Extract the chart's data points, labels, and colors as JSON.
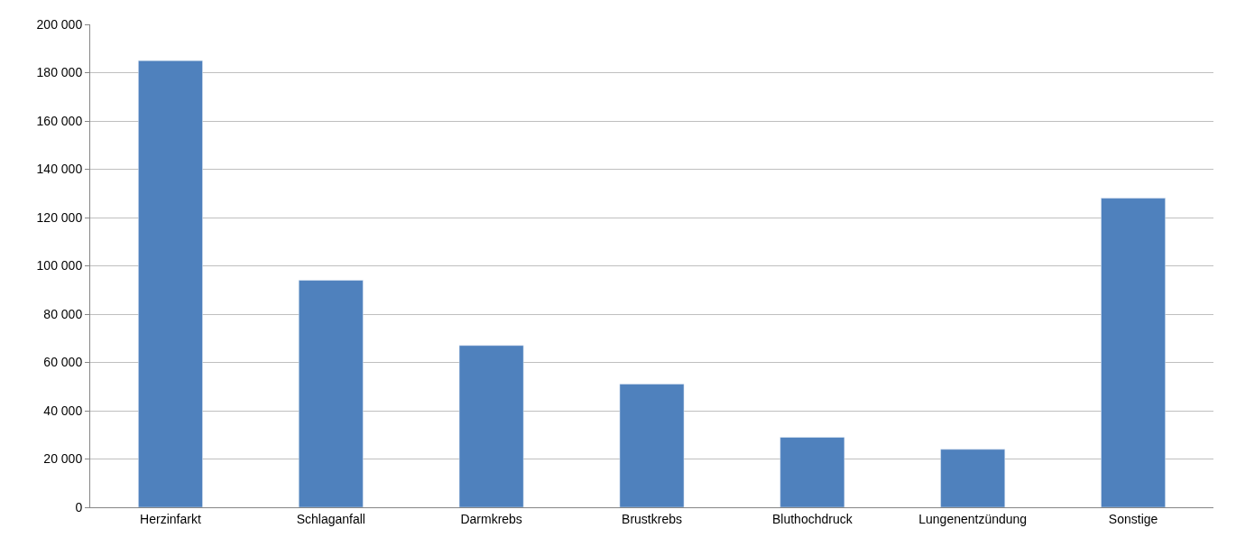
{
  "chart_data": {
    "type": "bar",
    "categories": [
      "Herzinfarkt",
      "Schlaganfall",
      "Darmkrebs",
      "Brustkrebs",
      "Bluthochdruck",
      "Lungenentzündung",
      "Sonstige"
    ],
    "series": [
      {
        "color": "#4f81bd",
        "values": [
          185000,
          94000,
          67000,
          51000,
          29000,
          24000,
          128000
        ]
      }
    ],
    "ylim": [
      0,
      200000
    ],
    "yticks": [
      0,
      {
        "value": 20000,
        "label": "20 000"
      },
      {
        "value": 40000,
        "label": "40 000"
      },
      {
        "value": 60000,
        "label": "60 000"
      },
      {
        "value": 80000,
        "label": "80 000"
      },
      {
        "value": 100000,
        "label": "100 000"
      },
      {
        "value": 120000,
        "label": "120 000"
      },
      {
        "value": 140000,
        "label": "140 000"
      },
      {
        "value": 160000,
        "label": "160 000"
      },
      {
        "value": 180000,
        "label": "180 000"
      },
      {
        "value": 200000,
        "label": "200 000"
      }
    ],
    "grid": "y"
  }
}
